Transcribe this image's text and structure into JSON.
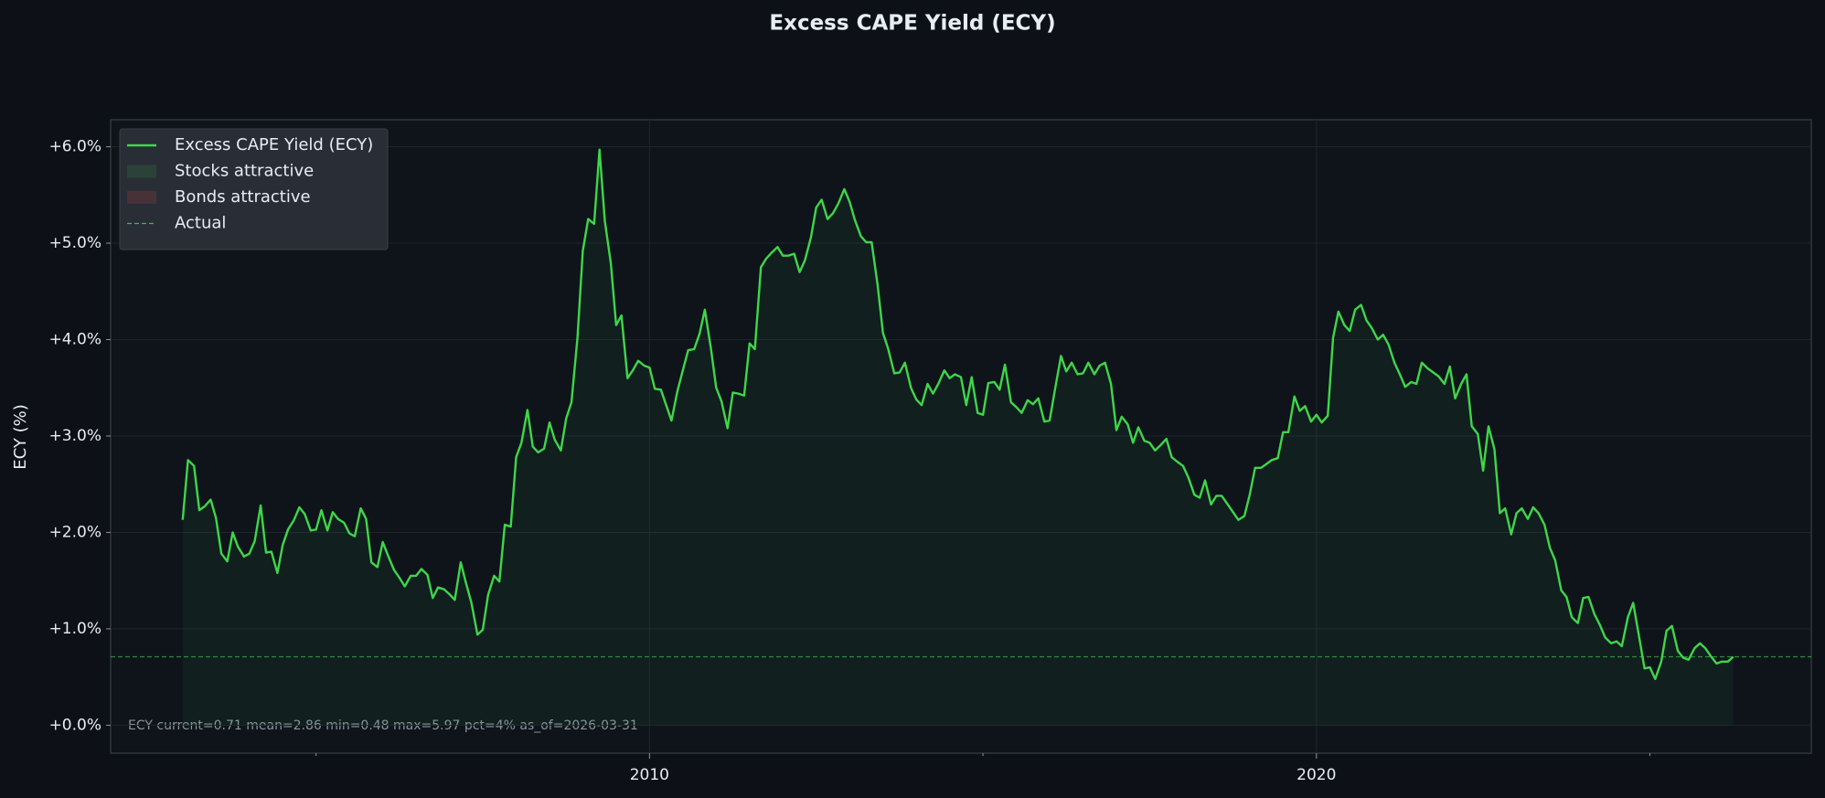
{
  "chart_data": {
    "type": "line",
    "title": "Excess CAPE Yield (ECY)",
    "ylabel": "ECY (%)",
    "annotation": "ECY  current=0.71  mean=2.86  min=0.48  max=5.97  pct=4%  as_of=2026-03-31",
    "xlim": [
      2001.92,
      2027.42
    ],
    "xticks": [
      2010,
      2020
    ],
    "xminorticks": [
      2005,
      2015,
      2025
    ],
    "ylim": [
      -0.29,
      6.28
    ],
    "yticks": [
      {
        "value": 0,
        "label": "+0.0%"
      },
      {
        "value": 1,
        "label": "+1.0%"
      },
      {
        "value": 2,
        "label": "+2.0%"
      },
      {
        "value": 3,
        "label": "+3.0%"
      },
      {
        "value": 4,
        "label": "+4.0%"
      },
      {
        "value": 5,
        "label": "+5.0%"
      },
      {
        "value": 6,
        "label": "+6.0%"
      }
    ],
    "grid": true,
    "legend": "upper left",
    "x": [
      2003.0,
      2003.08,
      2003.17,
      2003.25,
      2003.33,
      2003.42,
      2003.5,
      2003.58,
      2003.67,
      2003.75,
      2003.83,
      2003.92,
      2004.0,
      2004.08,
      2004.17,
      2004.25,
      2004.33,
      2004.42,
      2004.5,
      2004.58,
      2004.67,
      2004.75,
      2004.83,
      2004.92,
      2005.0,
      2005.08,
      2005.17,
      2005.25,
      2005.33,
      2005.42,
      2005.5,
      2005.58,
      2005.67,
      2005.75,
      2005.83,
      2005.92,
      2006.0,
      2006.08,
      2006.17,
      2006.25,
      2006.33,
      2006.42,
      2006.5,
      2006.58,
      2006.67,
      2006.75,
      2006.83,
      2006.92,
      2007.0,
      2007.08,
      2007.17,
      2007.25,
      2007.33,
      2007.42,
      2007.5,
      2007.58,
      2007.67,
      2007.75,
      2007.83,
      2007.92,
      2008.0,
      2008.08,
      2008.17,
      2008.25,
      2008.33,
      2008.42,
      2008.5,
      2008.58,
      2008.67,
      2008.75,
      2008.83,
      2008.92,
      2009.0,
      2009.08,
      2009.17,
      2009.25,
      2009.33,
      2009.42,
      2009.5,
      2009.58,
      2009.67,
      2009.75,
      2009.83,
      2009.92,
      2010.0,
      2010.08,
      2010.17,
      2010.25,
      2010.33,
      2010.42,
      2010.5,
      2010.58,
      2010.67,
      2010.75,
      2010.83,
      2010.92,
      2011.0,
      2011.08,
      2011.17,
      2011.25,
      2011.33,
      2011.42,
      2011.5,
      2011.58,
      2011.67,
      2011.75,
      2011.83,
      2011.92,
      2012.0,
      2012.08,
      2012.17,
      2012.25,
      2012.33,
      2012.42,
      2012.5,
      2012.58,
      2012.67,
      2012.75,
      2012.83,
      2012.92,
      2013.0,
      2013.08,
      2013.17,
      2013.25,
      2013.33,
      2013.42,
      2013.5,
      2013.58,
      2013.67,
      2013.75,
      2013.83,
      2013.92,
      2014.0,
      2014.08,
      2014.17,
      2014.25,
      2014.33,
      2014.42,
      2014.5,
      2014.58,
      2014.67,
      2014.75,
      2014.83,
      2014.92,
      2015.0,
      2015.08,
      2015.17,
      2015.25,
      2015.33,
      2015.42,
      2015.5,
      2015.58,
      2015.67,
      2015.75,
      2015.83,
      2015.92,
      2016.0,
      2016.08,
      2016.17,
      2016.25,
      2016.33,
      2016.42,
      2016.5,
      2016.58,
      2016.67,
      2016.75,
      2016.83,
      2016.92,
      2017.0,
      2017.08,
      2017.17,
      2017.25,
      2017.33,
      2017.42,
      2017.5,
      2017.58,
      2017.67,
      2017.75,
      2017.83,
      2017.92,
      2018.0,
      2018.08,
      2018.17,
      2018.25,
      2018.33,
      2018.42,
      2018.5,
      2018.58,
      2018.67,
      2018.75,
      2018.83,
      2018.92,
      2019.0,
      2019.08,
      2019.17,
      2019.25,
      2019.33,
      2019.42,
      2019.5,
      2019.58,
      2019.67,
      2019.75,
      2019.83,
      2019.92,
      2020.0,
      2020.08,
      2020.17,
      2020.25,
      2020.33,
      2020.42,
      2020.5,
      2020.58,
      2020.67,
      2020.75,
      2020.83,
      2020.92,
      2021.0,
      2021.08,
      2021.17,
      2021.25,
      2021.33,
      2021.42,
      2021.5,
      2021.58,
      2021.67,
      2021.75,
      2021.83,
      2021.92,
      2022.0,
      2022.08,
      2022.17,
      2022.25,
      2022.33,
      2022.42,
      2022.5,
      2022.58,
      2022.67,
      2022.75,
      2022.83,
      2022.92,
      2023.0,
      2023.08,
      2023.17,
      2023.25,
      2023.33,
      2023.42,
      2023.5,
      2023.58,
      2023.67,
      2023.75,
      2023.83,
      2023.92,
      2024.0,
      2024.08,
      2024.17,
      2024.25,
      2024.33,
      2024.42,
      2024.5,
      2024.58,
      2024.67,
      2024.75,
      2024.83,
      2024.92,
      2025.0,
      2025.08,
      2025.17,
      2025.25,
      2025.33,
      2025.42,
      2025.5,
      2025.58,
      2025.67,
      2025.75,
      2025.83,
      2025.92,
      2026.0,
      2026.08,
      2026.17,
      2026.25
    ],
    "series": [
      {
        "name": "Excess CAPE Yield (ECY)",
        "color": "#3fd64a",
        "values": [
          2.13,
          2.75,
          2.69,
          2.23,
          2.27,
          2.34,
          2.15,
          1.78,
          1.7,
          2.0,
          1.85,
          1.75,
          1.78,
          1.91,
          2.28,
          1.79,
          1.8,
          1.58,
          1.87,
          2.03,
          2.13,
          2.26,
          2.19,
          2.02,
          2.03,
          2.23,
          2.02,
          2.21,
          2.14,
          2.1,
          1.99,
          1.96,
          2.25,
          2.14,
          1.69,
          1.64,
          1.9,
          1.76,
          1.61,
          1.53,
          1.44,
          1.55,
          1.55,
          1.62,
          1.56,
          1.32,
          1.43,
          1.41,
          1.36,
          1.3,
          1.69,
          1.47,
          1.27,
          0.94,
          0.99,
          1.35,
          1.55,
          1.49,
          2.08,
          2.06,
          2.78,
          2.93,
          3.27,
          2.89,
          2.83,
          2.87,
          3.14,
          2.96,
          2.85,
          3.18,
          3.35,
          4.02,
          4.92,
          5.25,
          5.2,
          5.97,
          5.23,
          4.79,
          4.15,
          4.25,
          3.6,
          3.68,
          3.78,
          3.73,
          3.71,
          3.49,
          3.48,
          3.32,
          3.16,
          3.47,
          3.68,
          3.89,
          3.9,
          4.06,
          4.31,
          3.91,
          3.5,
          3.36,
          3.08,
          3.45,
          3.44,
          3.42,
          3.96,
          3.9,
          4.75,
          4.84,
          4.9,
          4.96,
          4.87,
          4.87,
          4.89,
          4.7,
          4.82,
          5.06,
          5.37,
          5.45,
          5.25,
          5.31,
          5.41,
          5.56,
          5.43,
          5.24,
          5.07,
          5.01,
          5.01,
          4.57,
          4.07,
          3.9,
          3.65,
          3.66,
          3.76,
          3.5,
          3.38,
          3.32,
          3.54,
          3.44,
          3.54,
          3.68,
          3.6,
          3.64,
          3.61,
          3.32,
          3.61,
          3.24,
          3.22,
          3.55,
          3.56,
          3.48,
          3.74,
          3.35,
          3.3,
          3.24,
          3.37,
          3.33,
          3.39,
          3.15,
          3.16,
          3.48,
          3.83,
          3.67,
          3.76,
          3.64,
          3.65,
          3.76,
          3.64,
          3.73,
          3.76,
          3.54,
          3.06,
          3.2,
          3.12,
          2.93,
          3.09,
          2.95,
          2.93,
          2.85,
          2.91,
          2.97,
          2.78,
          2.73,
          2.69,
          2.57,
          2.39,
          2.36,
          2.54,
          2.29,
          2.38,
          2.38,
          2.29,
          2.21,
          2.13,
          2.17,
          2.39,
          2.67,
          2.67,
          2.71,
          2.75,
          2.77,
          3.04,
          3.04,
          3.41,
          3.26,
          3.31,
          3.15,
          3.22,
          3.14,
          3.21,
          4.02,
          4.29,
          4.15,
          4.09,
          4.31,
          4.36,
          4.2,
          4.12,
          4.0,
          4.05,
          3.95,
          3.76,
          3.64,
          3.51,
          3.56,
          3.54,
          3.76,
          3.7,
          3.66,
          3.62,
          3.54,
          3.72,
          3.39,
          3.54,
          3.64,
          3.1,
          3.02,
          2.64,
          3.1,
          2.86,
          2.2,
          2.25,
          1.98,
          2.2,
          2.25,
          2.14,
          2.26,
          2.2,
          2.08,
          1.84,
          1.71,
          1.4,
          1.33,
          1.12,
          1.06,
          1.32,
          1.33,
          1.15,
          1.04,
          0.91,
          0.85,
          0.87,
          0.82,
          1.12,
          1.27,
          0.95,
          0.59,
          0.6,
          0.48,
          0.66,
          0.98,
          1.03,
          0.77,
          0.7,
          0.68,
          0.8,
          0.85,
          0.8,
          0.71,
          0.64,
          0.66,
          0.66,
          0.71
        ]
      }
    ],
    "fills": [
      {
        "name": "Stocks attractive",
        "color": "#3fb950"
      },
      {
        "name": "Bonds attractive",
        "color": "#f85149"
      }
    ],
    "hlines": [
      {
        "name": "Actual",
        "value": 0.71,
        "color": "#3fb950"
      }
    ]
  }
}
